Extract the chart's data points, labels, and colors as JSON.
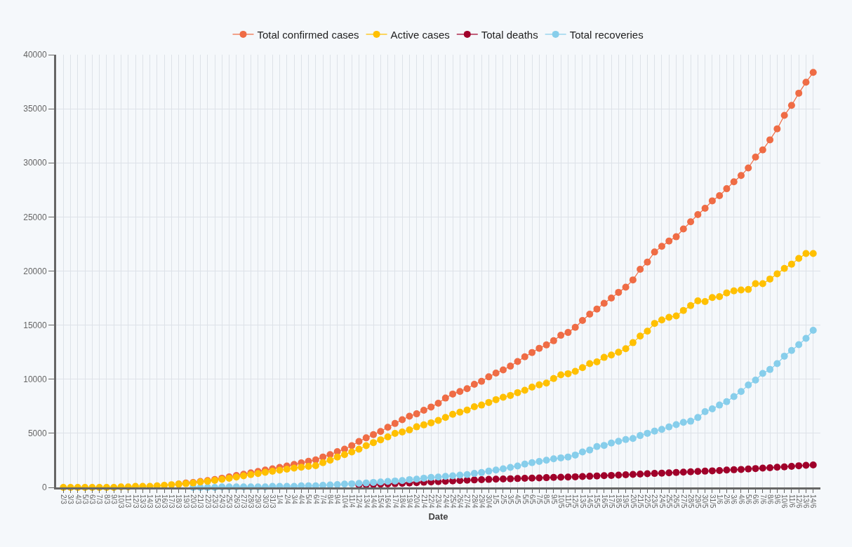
{
  "chart_data": {
    "type": "line",
    "xlabel": "Date",
    "categories": [
      "2/3",
      "3/3",
      "4/3",
      "5/3",
      "6/3",
      "7/3",
      "8/3",
      "9/3",
      "10/3",
      "11/3",
      "12/3",
      "13/3",
      "14/3",
      "15/3",
      "16/3",
      "17/3",
      "18/3",
      "19/3",
      "20/3",
      "21/3",
      "22/3",
      "23/3",
      "24/3",
      "25/3",
      "26/3",
      "27/3",
      "28/3",
      "29/3",
      "30/3",
      "31/3",
      "1/4",
      "2/4",
      "3/4",
      "4/4",
      "5/4",
      "6/4",
      "7/4",
      "8/4",
      "9/4",
      "10/4",
      "11/4",
      "12/4",
      "13/4",
      "14/4",
      "15/4",
      "16/4",
      "17/4",
      "18/4",
      "19/4",
      "20/4",
      "21/4",
      "22/4",
      "23/4",
      "24/4",
      "25/4",
      "26/4",
      "27/4",
      "28/4",
      "29/4",
      "30/4",
      "1/5",
      "2/5",
      "3/5",
      "4/5",
      "5/5",
      "6/5",
      "7/5",
      "8/5",
      "9/5",
      "10/5",
      "11/5",
      "12/5",
      "13/5",
      "14/5",
      "15/5",
      "16/5",
      "17/5",
      "18/5",
      "19/5",
      "20/5",
      "21/5",
      "22/5",
      "23/5",
      "24/5",
      "25/5",
      "26/5",
      "27/5",
      "28/5",
      "29/5",
      "30/5",
      "31/5",
      "1/6",
      "2/6",
      "3/6",
      "4/6",
      "5/6",
      "6/6",
      "7/6",
      "8/6",
      "9/6",
      "10/6",
      "11/6",
      "12/6",
      "13/6",
      "14/6"
    ],
    "series": [
      {
        "name": "Total confirmed cases",
        "color": "#ef6c45",
        "values": [
          null,
          null,
          null,
          null,
          null,
          null,
          null,
          null,
          null,
          null,
          null,
          null,
          null,
          null,
          null,
          null,
          300,
          400,
          450,
          550,
          630,
          730,
          850,
          970,
          1100,
          1220,
          1350,
          1480,
          1600,
          1720,
          1850,
          1980,
          2120,
          2270,
          2410,
          2550,
          2810,
          3030,
          3310,
          3530,
          3860,
          4250,
          4580,
          4880,
          5170,
          5560,
          5910,
          6260,
          6580,
          6800,
          7130,
          7430,
          7780,
          8260,
          8630,
          8870,
          9130,
          9530,
          9810,
          10220,
          10570,
          10860,
          11210,
          11640,
          12080,
          12470,
          12860,
          13170,
          13560,
          14060,
          14320,
          14800,
          15430,
          16010,
          16490,
          17020,
          17500,
          18030,
          18510,
          19180,
          20160,
          20830,
          21760,
          22290,
          22770,
          23170,
          23890,
          24550,
          25220,
          25800,
          26490,
          26970,
          27610,
          28250,
          28830,
          29530,
          30540,
          31200,
          32130,
          33140,
          34390,
          35320,
          36440,
          37450,
          38360
        ]
      },
      {
        "name": "Active cases",
        "color": "#ffc000",
        "values": [
          0,
          0,
          0,
          0,
          0,
          0,
          0,
          0,
          50,
          50,
          100,
          100,
          100,
          150,
          200,
          250,
          300,
          350,
          400,
          500,
          560,
          650,
          750,
          850,
          960,
          1070,
          1180,
          1280,
          1390,
          1490,
          1590,
          1690,
          1780,
          1870,
          1940,
          2010,
          2290,
          2510,
          2810,
          3030,
          3270,
          3530,
          3860,
          4140,
          4400,
          4670,
          4990,
          5120,
          5320,
          5600,
          5780,
          5970,
          6190,
          6470,
          6760,
          6950,
          7150,
          7460,
          7610,
          7850,
          8110,
          8330,
          8500,
          8760,
          8980,
          9270,
          9480,
          9640,
          10070,
          10400,
          10510,
          10730,
          11070,
          11440,
          11600,
          12020,
          12240,
          12500,
          12820,
          13380,
          13990,
          14440,
          15160,
          15480,
          15720,
          15850,
          16360,
          16810,
          17240,
          17180,
          17550,
          17630,
          17980,
          18170,
          18250,
          18300,
          18830,
          18830,
          19260,
          19740,
          20240,
          20640,
          21170,
          21620,
          21620
        ]
      },
      {
        "name": "Total deaths",
        "color": "#a0002a",
        "values": [
          null,
          null,
          null,
          null,
          null,
          null,
          null,
          null,
          null,
          null,
          null,
          null,
          null,
          null,
          null,
          null,
          null,
          null,
          null,
          null,
          null,
          null,
          null,
          null,
          null,
          null,
          null,
          null,
          null,
          null,
          null,
          null,
          null,
          null,
          null,
          null,
          null,
          null,
          null,
          null,
          null,
          230,
          250,
          270,
          290,
          320,
          350,
          380,
          410,
          440,
          480,
          510,
          540,
          570,
          600,
          630,
          660,
          690,
          710,
          740,
          760,
          780,
          800,
          820,
          840,
          860,
          880,
          900,
          920,
          940,
          960,
          980,
          1010,
          1030,
          1060,
          1090,
          1110,
          1140,
          1170,
          1200,
          1230,
          1260,
          1290,
          1320,
          1350,
          1380,
          1410,
          1440,
          1470,
          1500,
          1530,
          1560,
          1600,
          1630,
          1660,
          1700,
          1740,
          1780,
          1820,
          1860,
          1900,
          1950,
          2000,
          2040,
          2080
        ]
      },
      {
        "name": "Total recoveries",
        "color": "#87ceeb",
        "values": [
          null,
          null,
          null,
          null,
          null,
          null,
          null,
          null,
          null,
          null,
          null,
          null,
          null,
          null,
          null,
          null,
          null,
          null,
          0,
          0,
          0,
          0,
          50,
          50,
          50,
          50,
          50,
          50,
          50,
          100,
          100,
          100,
          100,
          150,
          150,
          150,
          200,
          220,
          260,
          310,
          330,
          370,
          410,
          460,
          500,
          550,
          590,
          630,
          720,
          760,
          850,
          920,
          960,
          1020,
          1070,
          1130,
          1180,
          1290,
          1370,
          1500,
          1610,
          1720,
          1850,
          1980,
          2160,
          2290,
          2400,
          2510,
          2640,
          2730,
          2810,
          2990,
          3270,
          3460,
          3780,
          3880,
          4100,
          4260,
          4420,
          4520,
          4790,
          5000,
          5210,
          5370,
          5590,
          5800,
          6010,
          6120,
          6460,
          7000,
          7260,
          7610,
          7930,
          8400,
          8860,
          9470,
          9920,
          10530,
          10900,
          11440,
          12130,
          12660,
          13190,
          13780,
          14520
        ]
      }
    ],
    "ylim": [
      0,
      40000
    ],
    "yticks": [
      0,
      5000,
      10000,
      15000,
      20000,
      25000,
      30000,
      35000,
      40000
    ],
    "grid": true,
    "legend": "top",
    "marker": "circle",
    "line_style": "solid"
  }
}
